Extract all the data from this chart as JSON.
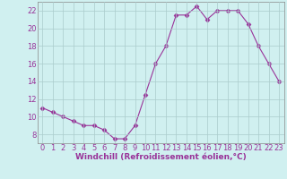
{
  "x": [
    0,
    1,
    2,
    3,
    4,
    5,
    6,
    7,
    8,
    9,
    10,
    11,
    12,
    13,
    14,
    15,
    16,
    17,
    18,
    19,
    20,
    21,
    22,
    23
  ],
  "y": [
    11,
    10.5,
    10,
    9.5,
    9,
    9,
    8.5,
    7.5,
    7.5,
    9,
    12.5,
    16,
    18,
    21.5,
    21.5,
    22.5,
    21,
    22,
    22,
    22,
    20.5,
    18,
    16,
    14
  ],
  "line_color": "#993399",
  "marker": "D",
  "marker_size": 2.5,
  "bg_color": "#d0f0f0",
  "grid_color": "#aacccc",
  "xlabel": "Windchill (Refroidissement éolien,°C)",
  "xlabel_fontsize": 6.5,
  "tick_fontsize": 6.0,
  "xlim": [
    -0.5,
    23.5
  ],
  "ylim": [
    7,
    23
  ],
  "yticks": [
    8,
    10,
    12,
    14,
    16,
    18,
    20,
    22
  ],
  "xticks": [
    0,
    1,
    2,
    3,
    4,
    5,
    6,
    7,
    8,
    9,
    10,
    11,
    12,
    13,
    14,
    15,
    16,
    17,
    18,
    19,
    20,
    21,
    22,
    23
  ]
}
